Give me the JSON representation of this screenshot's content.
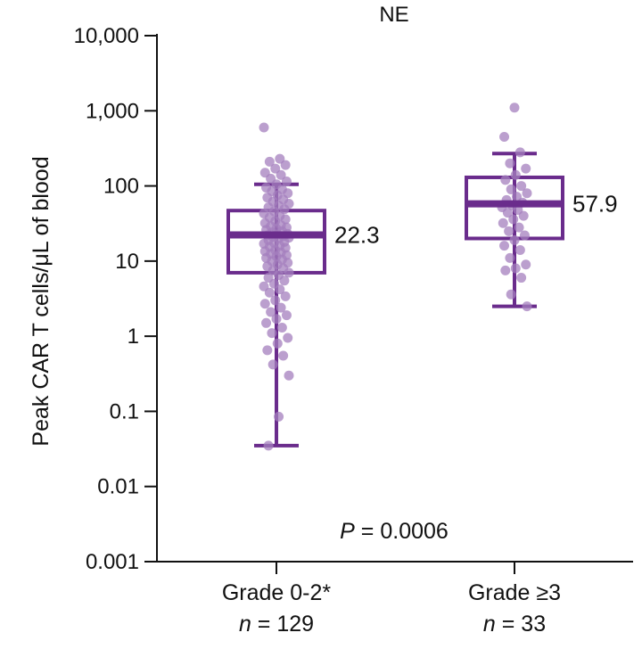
{
  "chart_data": {
    "type": "box",
    "title": "NE",
    "ylabel": "Peak CAR T cells/μL of blood",
    "yscale": "log",
    "ylim": [
      0.001,
      10000
    ],
    "yticks": [
      "0.001",
      "0.01",
      "0.1",
      "1",
      "10",
      "100",
      "1,000",
      "10,000"
    ],
    "yticks_values": [
      0.001,
      0.01,
      0.1,
      1,
      10,
      100,
      1000,
      10000
    ],
    "color": "#6a2c8c",
    "point_color": "#a47fbe",
    "p_value": {
      "label": "P",
      "text": " = 0.0006"
    },
    "groups": [
      {
        "category": "Grade 0-2*",
        "n_label": "n",
        "n_text": " = 129",
        "median": 22.3,
        "median_label": "22.3",
        "q1": 7,
        "q3": 47,
        "whisker_low": 0.035,
        "whisker_high": 105,
        "points": [
          600,
          230,
          210,
          190,
          170,
          150,
          140,
          125,
          115,
          105,
          95,
          90,
          85,
          80,
          75,
          70,
          66,
          62,
          58,
          55,
          52,
          49,
          46,
          43,
          40,
          38,
          36,
          34,
          32,
          30,
          29,
          28,
          27,
          26,
          25,
          24,
          23,
          22.5,
          22,
          21.5,
          21,
          20.5,
          20,
          19,
          18,
          17.5,
          17,
          16,
          15.5,
          15,
          14,
          13.5,
          13,
          12.5,
          12,
          11.5,
          11,
          10.5,
          10,
          9.5,
          9,
          8.5,
          8,
          7.5,
          7,
          6.5,
          6,
          5.5,
          5,
          4.6,
          4.2,
          3.8,
          3.4,
          3,
          2.7,
          2.4,
          2.1,
          1.9,
          1.7,
          1.5,
          1.3,
          1.1,
          0.95,
          0.8,
          0.65,
          0.55,
          0.42,
          0.3,
          0.085,
          0.035
        ],
        "points_note": "",
        "outlier_display": "dots"
      },
      {
        "category": "Grade ≥3",
        "n_label": "n",
        "n_text": " = 33",
        "median": 57.9,
        "median_label": "57.9",
        "q1": 20,
        "q3": 130,
        "whisker_low": 2.5,
        "whisker_high": 270,
        "points": [
          1100,
          450,
          280,
          200,
          170,
          140,
          120,
          100,
          90,
          80,
          72,
          65,
          60,
          55,
          52,
          48,
          44,
          40,
          36,
          32,
          28,
          25,
          22,
          19,
          16,
          14,
          11,
          9,
          8,
          7.5,
          6,
          3.6,
          2.5
        ],
        "points_note": "",
        "outlier_display": "dots"
      }
    ]
  }
}
